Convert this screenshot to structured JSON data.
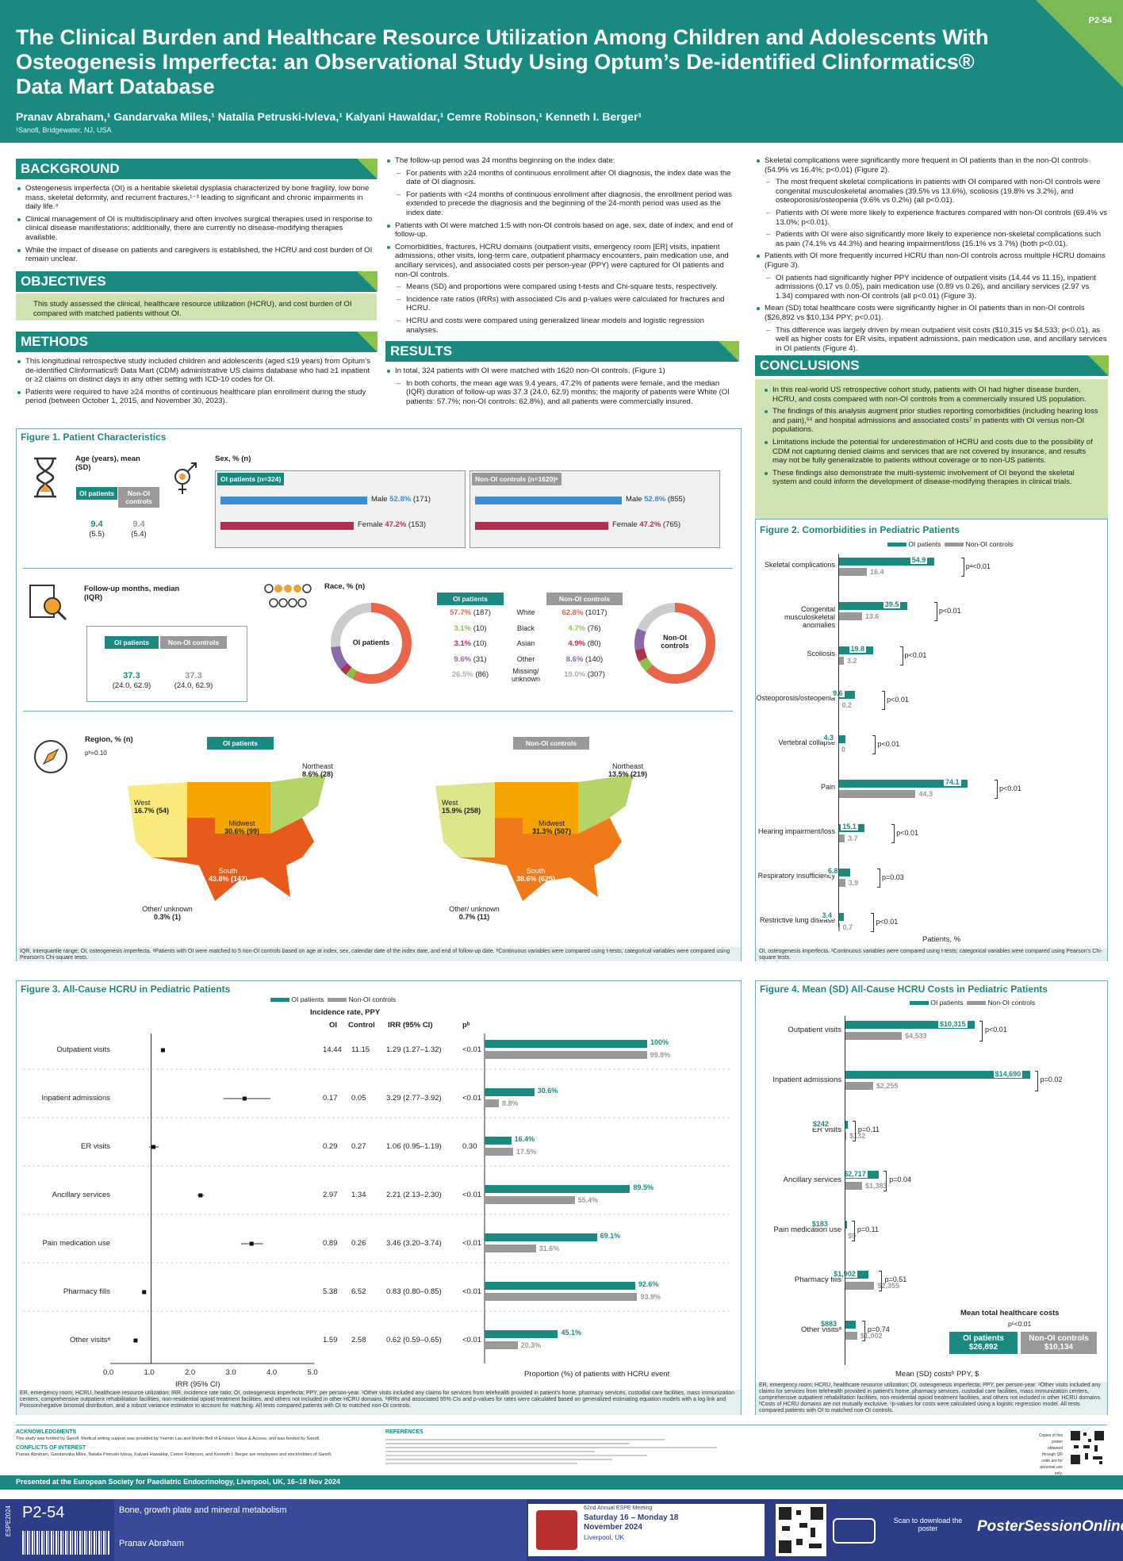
{
  "header": {
    "title": "The Clinical Burden and Healthcare Resource Utilization Among Children and Adolescents With Osteogenesis Imperfecta: an Observational Study Using Optum’s De-identified Clinformatics® Data Mart Database",
    "authors": "Pranav Abraham,¹ Gandarvaka Miles,¹ Natalia Petruski-Ivleva,¹ Kalyani Hawaldar,¹ Cemre Robinson,¹ Kenneth I. Berger¹",
    "affiliation": "¹Sanofi, Bridgewater, NJ, USA",
    "code": "P2-54"
  },
  "background": {
    "title": "BACKGROUND",
    "items": [
      "Osteogenesis imperfecta (OI) is a heritable skeletal dysplasia characterized by bone fragility, low bone mass, skeletal deformity, and recurrent fractures,¹⁻³ leading to significant and chronic impairments in daily life.⁴",
      "Clinical management of OI is multidisciplinary and often involves surgical therapies used in response to clinical disease manifestations; additionally, there are currently no disease-modifying therapies available.",
      "While the impact of disease on patients and caregivers is established, the HCRU and cost burden of OI remain unclear."
    ]
  },
  "objectives": {
    "title": "OBJECTIVES",
    "text": "This study assessed the clinical, healthcare resource utilization (HCRU), and cost burden of OI compared with matched patients without OI."
  },
  "methods": {
    "title": "METHODS",
    "items": [
      "This longitudinal retrospective study included children and adolescents (aged ≤19 years) from Optum’s de-identified Clinformatics® Data Mart (CDM) administrative US claims database who had ≥1 inpatient or ≥2 claims on distinct days in any other setting with ICD-10 codes for OI.",
      "Patients were required to have ≥24 months of continuous healthcare plan enrollment during the study period (between October 1, 2015, and November 30, 2023)."
    ]
  },
  "col2": {
    "items": [
      {
        "t": "The follow-up period was 24 months beginning on the index date:",
        "s": false
      },
      {
        "t": "For patients with ≥24 months of continuous enrollment after OI diagnosis, the index date was the date of OI diagnosis.",
        "s": true
      },
      {
        "t": "For patients with <24 months of continuous enrollment after diagnosis, the enrollment period was extended to precede the diagnosis and the beginning of the 24-month period was used as the index date.",
        "s": true
      },
      {
        "t": "Patients with OI were matched 1:5 with non-OI controls based on age, sex, date of index, and end of follow-up.",
        "s": false
      },
      {
        "t": "Comorbidities, fractures, HCRU domains (outpatient visits, emergency room [ER] visits, inpatient admissions, other visits, long-term care, outpatient pharmacy encounters, pain medication use, and ancillary services), and associated costs per person-year (PPY) were captured for OI patients and non-OI controls.",
        "s": false
      },
      {
        "t": "Means (SD) and proportions were compared using t-tests and Chi-square tests, respectively.",
        "s": true
      },
      {
        "t": "Incidence rate ratios (IRRs) with associated CIs and p-values were calculated for fractures and HCRU.",
        "s": true
      },
      {
        "t": "HCRU and costs were compared using generalized linear models and logistic regression analyses.",
        "s": true
      }
    ]
  },
  "results": {
    "title": "RESULTS",
    "items": [
      {
        "t": "In total, 324 patients with OI were matched with 1620 non-OI controls. (Figure 1)",
        "s": false
      },
      {
        "t": "In both cohorts, the mean age was 9.4 years, 47.2% of patients were female, and the median (IQR) duration of follow-up was 37.3 (24.0, 62.9) months; the majority of patients were White (OI patients: 57.7%; non-OI controls: 62.8%), and all patients were commercially insured.",
        "s": true
      }
    ]
  },
  "col3": {
    "items": [
      {
        "t": "Skeletal complications were significantly more frequent in OI patients than in the non-OI controls (54.9% vs 16.4%; p<0.01) (Figure 2).",
        "s": false
      },
      {
        "t": "The most frequent skeletal complications in patients with OI compared with non-OI controls were congenital musculoskeletal anomalies (39.5% vs 13.6%), scoliosis (19.8% vs 3.2%), and osteoporosis/osteopenia (9.6% vs 0.2%) (all p<0.01).",
        "s": true
      },
      {
        "t": "Patients with OI were more likely to experience fractures compared with non-OI controls (69.4% vs 13.0%; p<0.01).",
        "s": true
      },
      {
        "t": "Patients with OI were also significantly more likely to experience non-skeletal complications such as pain (74.1% vs 44.3%) and hearing impairment/loss (15.1% vs 3.7%) (both p<0.01).",
        "s": true
      },
      {
        "t": "Patients with OI more frequently incurred HCRU than non-OI controls across multiple HCRU domains (Figure 3).",
        "s": false
      },
      {
        "t": "OI patients had significantly higher PPY incidence of outpatient visits (14.44 vs 11.15), inpatient admissions (0.17 vs 0.05), pain medication use (0.89 vs 0.26), and ancillary services (2.97 vs 1.34) compared with non-OI controls (all p<0.01) (Figure 3).",
        "s": true
      },
      {
        "t": "Mean (SD) total healthcare costs were significantly higher in OI patients than in non-OI controls ($26,892 vs $10,134 PPY; p<0.01).",
        "s": false
      },
      {
        "t": "This difference was largely driven by mean outpatient visit costs ($10,315 vs $4,533; p<0.01), as well as higher costs for ER visits, inpatient admissions, pain medication use, and ancillary services in OI patients (Figure 4).",
        "s": true
      }
    ]
  },
  "conclusions": {
    "title": "CONCLUSIONS",
    "items": [
      "In this real-world US retrospective cohort study, patients with OI had higher disease burden, HCRU, and costs compared with non-OI controls from a commercially insured US population.",
      "The findings of this analysis augment prior studies reporting comorbidities (including hearing loss and pain),⁵⁶ and hospital admissions and associated costs⁷ in patients with OI versus non-OI populations.",
      "Limitations include the potential for underestimation of HCRU and costs due to the possibility of CDM not capturing denied claims and services that are not covered by insurance, and results may not be fully generalizable to patients without coverage or to non-US patients.",
      "These findings also demonstrate the multi-systemic involvement of OI beyond the skeletal system and could inform the development of disease-modifying therapies in clinical trials."
    ]
  },
  "fig1": {
    "title": "Figure 1. Patient Characteristics",
    "age_label": "Age (years), mean (SD)",
    "oi": "OI patients",
    "non": "Non-OI controls",
    "age_oi": "9.4",
    "age_oi_sd": "(5.5)",
    "age_non": "9.4",
    "age_non_sd": "(5.4)",
    "sex_label": "Sex, % (n)",
    "oi_box": "OI patients (n=324)",
    "non_box": "Non-OI controls (n=1620)ᵃ",
    "male": "Male",
    "female": "Female",
    "oi_male": "52.8%",
    "oi_male_n": "(171)",
    "oi_female": "47.2%",
    "oi_female_n": "(153)",
    "non_male": "52.8%",
    "non_male_n": "(855)",
    "non_female": "47.2%",
    "non_female_n": "(765)",
    "fu_label": "Follow-up months, median (IQR)",
    "fu_oi": "37.3",
    "fu_oi_iqr": "(24.0, 62.9)",
    "fu_non": "37.3",
    "fu_non_iqr": "(24.0, 62.9)",
    "race_label": "Race, % (n)",
    "race": [
      {
        "name": "White",
        "oi": "57.7%",
        "oin": "(187)",
        "non": "62.8%",
        "nonn": "(1017)",
        "color": "#e8654a"
      },
      {
        "name": "Black",
        "oi": "3.1%",
        "oin": "(10)",
        "non": "4.7%",
        "nonn": "(76)",
        "color": "#8bc34a"
      },
      {
        "name": "Asian",
        "oi": "3.1%",
        "oin": "(10)",
        "non": "4.9%",
        "nonn": "(80)",
        "color": "#b03050"
      },
      {
        "name": "Other",
        "oi": "9.6%",
        "oin": "(31)",
        "non": "8.6%",
        "nonn": "(140)",
        "color": "#8a6aa8"
      },
      {
        "name": "Missing/ unknown",
        "oi": "26.5%",
        "oin": "(86)",
        "non": "19.0%",
        "nonn": "(307)",
        "color": "#cccccc"
      }
    ],
    "donut_oi": "OI patients",
    "donut_non": "Non-OI controls",
    "region_label": "Region, % (n)",
    "region_p": "pᵇ=0.10",
    "regions_oi": {
      "west": "West",
      "west_v": "16.7% (54)",
      "mid": "Midwest",
      "mid_v": "30.6% (99)",
      "ne": "Northeast",
      "ne_v": "8.6% (28)",
      "south": "South",
      "south_v": "43.8% (142)",
      "oth": "Other/ unknown",
      "oth_v": "0.3% (1)"
    },
    "regions_non": {
      "west": "West",
      "west_v": "15.9% (258)",
      "mid": "Midwest",
      "mid_v": "31.3% (507)",
      "ne": "Northeast",
      "ne_v": "13.5% (219)",
      "south": "South",
      "south_v": "38.6% (625)",
      "oth": "Other/ unknown",
      "oth_v": "0.7% (11)"
    },
    "footnote": "IQR, interquartile range; OI, osteogenesis imperfecta. ᵃPatients with OI were matched to 5 non-OI controls based on age at index, sex, calendar date of the index date, and end of follow-up date. ᵇContinuous variables were compared using t-tests; categorical variables were compared using Pearson's Chi-square tests."
  },
  "chart_data": [
    {
      "type": "bar",
      "title": "Figure 2. Comorbidities in Pediatric Patients",
      "xlabel": "Patients, %",
      "legend": [
        "OI patients",
        "Non-OI controls"
      ],
      "categories": [
        "Skeletal complications",
        "Congenital musculoskeletal anomalies",
        "Scoliosis",
        "Osteoporosis/osteopenia",
        "Vertebral collapse",
        "Pain",
        "Hearing impairment/loss",
        "Respiratory insufficiency",
        "Restrictive lung disease"
      ],
      "series": [
        {
          "name": "OI patients",
          "values": [
            54.9,
            39.5,
            19.8,
            9.6,
            4.3,
            74.1,
            15.1,
            6.8,
            3.4
          ]
        },
        {
          "name": "Non-OI controls",
          "values": [
            16.4,
            13.6,
            3.2,
            0.2,
            0.0,
            44.3,
            3.7,
            3.9,
            0.7
          ]
        }
      ],
      "p": [
        "pᵃ<0.01",
        "p<0.01",
        "p<0.01",
        "p<0.01",
        "p<0.01",
        "p<0.01",
        "p<0.01",
        "p=0.03",
        "p<0.01"
      ],
      "footnote": "OI, osteogenesis imperfecta. ᵃContinuous variables were compared using t-tests; categorical variables were compared using Pearson's Chi-square tests."
    },
    {
      "type": "bar",
      "title": "Figure 3. All-Cause HCRU in Pediatric Patients",
      "legend": [
        "OI patients",
        "Non-OI controls"
      ],
      "table_title": "Incidence rate, PPY",
      "cols": [
        "OI",
        "Control",
        "IRR (95% CI)",
        "pᵇ"
      ],
      "categories": [
        "Outpatient visits",
        "Inpatient admissions",
        "ER visits",
        "Ancillary services",
        "Pain medication use",
        "Pharmacy fills",
        "Other visitsᵃ"
      ],
      "oi_rate": [
        "14.44",
        "0.17",
        "0.29",
        "2.97",
        "0.89",
        "5.38",
        "1.59"
      ],
      "ctl_rate": [
        "11.15",
        "0.05",
        "0.27",
        "1.34",
        "0.26",
        "6.52",
        "2.58"
      ],
      "irr_text": [
        "1.29 (1.27–1.32)",
        "3.29 (2.77–3.92)",
        "1.06 (0.95–1.19)",
        "2.21 (2.13–2.30)",
        "3.46 (3.20–3.74)",
        "0.83 (0.80–0.85)",
        "0.62 (0.59–0.65)"
      ],
      "irr": [
        1.29,
        3.29,
        1.06,
        2.21,
        3.46,
        0.83,
        0.62
      ],
      "irr_lo": [
        1.27,
        2.77,
        0.95,
        2.13,
        3.2,
        0.8,
        0.59
      ],
      "irr_hi": [
        1.32,
        3.92,
        1.19,
        2.3,
        3.74,
        0.85,
        0.65
      ],
      "p": [
        "<0.01",
        "<0.01",
        "0.30",
        "<0.01",
        "<0.01",
        "<0.01",
        "<0.01"
      ],
      "x_ticks": [
        "0.0",
        "1.0",
        "2.0",
        "3.0",
        "4.0",
        "5.0"
      ],
      "xlabel": "IRR (95% CI)",
      "xlabel2": "Proportion (%) of patients with HCRU event",
      "series": [
        {
          "name": "OI patients",
          "values": [
            100,
            30.6,
            16.4,
            89.5,
            69.1,
            92.6,
            45.1
          ]
        },
        {
          "name": "Non-OI controls",
          "values": [
            99.8,
            8.8,
            17.5,
            55.4,
            31.6,
            93.9,
            20.3
          ]
        }
      ],
      "footnote": "ER, emergency room; HCRU, healthcare resource utilization; IRR, incidence rate ratio; OI, osteogenesis imperfecta; PPY, per person-year. ᵃOther visits included any claims for services from telehealth provided in patient's home, pharmacy services, custodial care facilities, mass immunization centers, comprehensive outpatient rehabilitation facilities, non-residential opioid treatment facilities, and others not included in other HCRU domains. ᵇIRRs and associated 95% CIs and p-values for rates were calculated based on generalized estimating equation models with a log link and Poisson/negative binomial distribution, and a robust variance estimator to account for matching. All tests compared patients with OI to matched non-OI controls."
    },
    {
      "type": "bar",
      "title": "Figure 4. Mean (SD) All-Cause HCRU Costs in Pediatric Patients",
      "xlabel": "Mean (SD) costsᵇ PPY, $",
      "legend": [
        "OI patients",
        "Non-OI controls"
      ],
      "categories": [
        "Outpatient visits",
        "Inpatient admissions",
        "ER visits",
        "Ancillary services",
        "Pain medication use",
        "Pharmacy fills",
        "Other visitsᵃ"
      ],
      "series": [
        {
          "name": "OI patients",
          "values": [
            10315,
            14690,
            242,
            2717,
            183,
            1902,
            883
          ],
          "labels": [
            "$10,315",
            "$14,690",
            "$242",
            "$2,717",
            "$183",
            "$1,902",
            "$883"
          ]
        },
        {
          "name": "Non-OI controls",
          "values": [
            4533,
            2255,
            132,
            1383,
            9,
            2355,
            1002
          ],
          "labels": [
            "$4,533",
            "$2,255",
            "$132",
            "$1,383",
            "$9",
            "$2,355",
            "$1,002"
          ]
        }
      ],
      "p": [
        "p<0.01",
        "p=0.02",
        "p=0.11",
        "p=0.04",
        "p=0.11",
        "p=0.51",
        "p=0.74"
      ],
      "total_title": "Mean total healthcare costs",
      "total_p": "pᶜ<0.01",
      "total_oi": "$26,892",
      "total_non": "$10,134",
      "footnote": "ER, emergency room; HCRU, healthcare resource utilization; OI, osteogenesis imperfecta; PPY, per person-year. ᵃOther visits included any claims for services from telehealth provided in patient's home, pharmacy services, custodial care facilities, mass immunization centers, comprehensive outpatient rehabilitation facilities, non-residential opioid treatment facilities, and others not included in other HCRU domains. ᵇCosts of HCRU domains are not mutually exclusive. ᶜp-values for costs were calculated using a logistic regression model. All tests compared patients with OI to matched non-OI controls."
    }
  ],
  "footer": {
    "ack_title": "ACKNOWLEDGMENTS",
    "ack": "This study was funded by Sanofi. Medical writing support was provided by Yasmin Lau and Martin Bell of Envision Value & Access, and was funded by Sanofi.",
    "coi_title": "CONFLICTS OF INTEREST",
    "coi": "Pranav Abraham, Gandarvaka Miles, Natalia Petruski-Ivleva, Kalyani Hawaldar, Cemre Robinson, and Kenneth I. Berger are employees and stockholders of Sanofi.",
    "ref_title": "REFERENCES",
    "qr_text": "Copies of this poster obtained through QR code are for personal use only.",
    "presented": "Presented at the European Society for Paediatric Endocrinology, Liverpool, UK, 16–18 Nov 2024",
    "bot_code": "P2-54",
    "topic": "Bone, growth plate and mineral metabolism",
    "presenter": "Pranav Abraham",
    "espe_side": "ESPE2024",
    "meeting1": "62nd Annual ESPE Meeting",
    "meeting2": "Saturday 16 – Monday 18",
    "meeting3": "November 2024",
    "meeting4": "Liverpool, UK",
    "scan": "Scan to download the poster",
    "brand": "PosterSessionOnline"
  }
}
